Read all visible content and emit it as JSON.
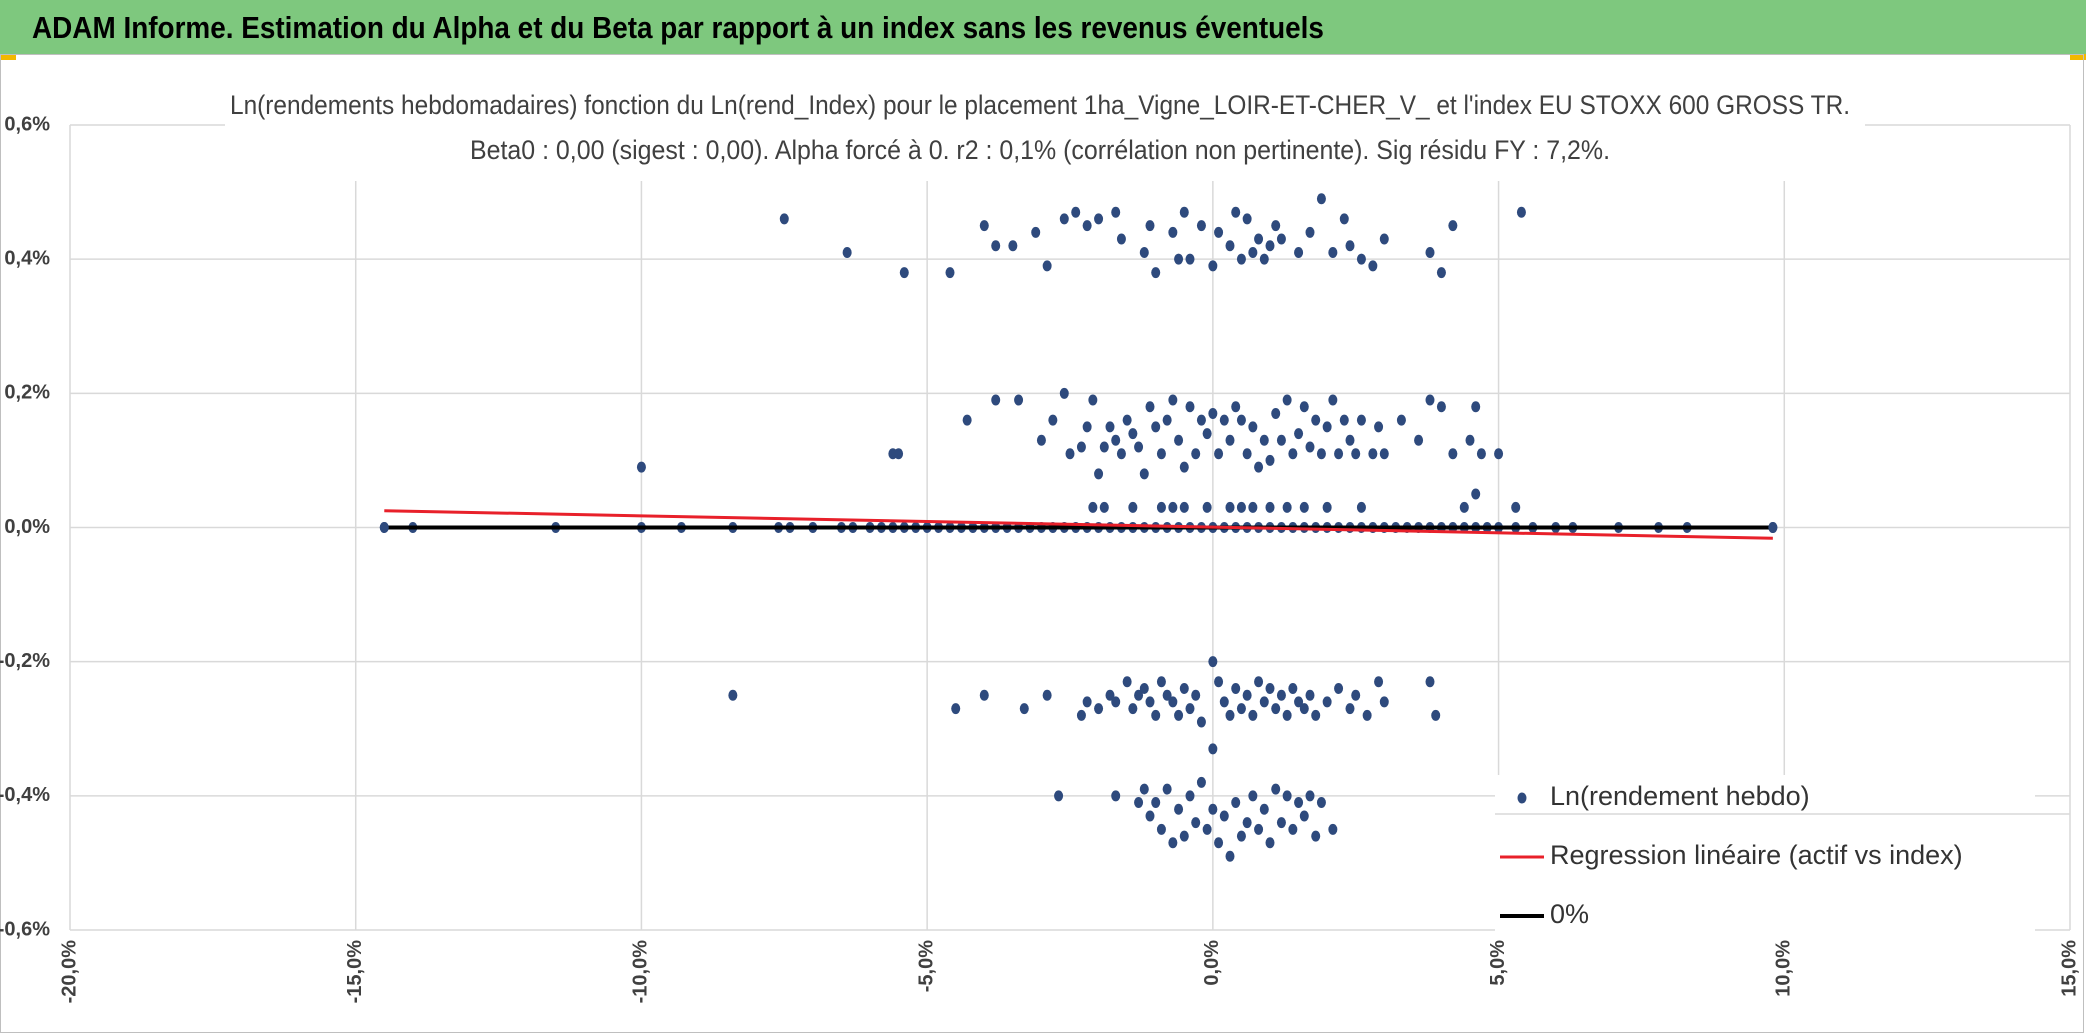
{
  "header": {
    "title": "ADAM Informe. Estimation du Alpha et du Beta par rapport à un index sans les revenus éventuels",
    "background": "#7ec87e",
    "corner_color": "#f2b800"
  },
  "chart_data": {
    "type": "scatter",
    "title": "Ln(rendements hebdomadaires) fonction du Ln(rend_Index) pour le placement 1ha_Vigne_LOIR-ET-CHER_V_ et l'index EU STOXX 600 GROSS TR.",
    "subtitle": "Beta0 : 0,00 (sigest : 0,00). Alpha forcé à 0. r2 : 0,1% (corrélation non pertinente). Sig résidu FY : 7,2%.",
    "xlabel": "",
    "ylabel": "",
    "xlim": [
      -20,
      15
    ],
    "ylim": [
      -0.6,
      0.6
    ],
    "x_ticks": [
      "-20,0%",
      "-15,0%",
      "-10,0%",
      "-5,0%",
      "0,0%",
      "5,0%",
      "10,0%",
      "15,0%"
    ],
    "y_ticks": [
      "0,6%",
      "0,4%",
      "0,2%",
      "0,0%",
      "-0,2%",
      "-0,4%",
      "-0,6%"
    ],
    "grid": true,
    "legend_position": "bottom-right",
    "series": [
      {
        "name": "Ln(rendement hebdo)",
        "kind": "scatter",
        "color": "#2e4a7d",
        "points": [
          [
            -7.5,
            0.46
          ],
          [
            -6.4,
            0.41
          ],
          [
            -5.4,
            0.38
          ],
          [
            -4.6,
            0.38
          ],
          [
            -4.0,
            0.45
          ],
          [
            -3.8,
            0.42
          ],
          [
            -3.5,
            0.42
          ],
          [
            -3.1,
            0.44
          ],
          [
            -2.9,
            0.39
          ],
          [
            -2.6,
            0.46
          ],
          [
            -2.4,
            0.47
          ],
          [
            -2.2,
            0.45
          ],
          [
            -2.0,
            0.46
          ],
          [
            -1.7,
            0.47
          ],
          [
            -1.6,
            0.43
          ],
          [
            -1.2,
            0.41
          ],
          [
            -1.1,
            0.45
          ],
          [
            -1.0,
            0.38
          ],
          [
            -0.7,
            0.44
          ],
          [
            -0.6,
            0.4
          ],
          [
            -0.5,
            0.47
          ],
          [
            -0.4,
            0.4
          ],
          [
            -0.2,
            0.45
          ],
          [
            0.0,
            0.39
          ],
          [
            0.1,
            0.44
          ],
          [
            0.3,
            0.42
          ],
          [
            0.4,
            0.47
          ],
          [
            0.5,
            0.4
          ],
          [
            0.6,
            0.46
          ],
          [
            0.7,
            0.41
          ],
          [
            0.8,
            0.43
          ],
          [
            0.9,
            0.4
          ],
          [
            1.0,
            0.42
          ],
          [
            1.1,
            0.45
          ],
          [
            1.2,
            0.43
          ],
          [
            1.5,
            0.41
          ],
          [
            1.7,
            0.44
          ],
          [
            1.9,
            0.49
          ],
          [
            2.1,
            0.41
          ],
          [
            2.3,
            0.46
          ],
          [
            2.4,
            0.42
          ],
          [
            2.6,
            0.4
          ],
          [
            2.8,
            0.39
          ],
          [
            3.0,
            0.43
          ],
          [
            3.8,
            0.41
          ],
          [
            4.0,
            0.38
          ],
          [
            4.2,
            0.45
          ],
          [
            5.4,
            0.47
          ],
          [
            -10.0,
            0.09
          ],
          [
            -5.6,
            0.11
          ],
          [
            -5.5,
            0.11
          ],
          [
            -4.3,
            0.16
          ],
          [
            -3.8,
            0.19
          ],
          [
            -3.4,
            0.19
          ],
          [
            -3.0,
            0.13
          ],
          [
            -2.8,
            0.16
          ],
          [
            -2.6,
            0.2
          ],
          [
            -2.5,
            0.11
          ],
          [
            -2.3,
            0.12
          ],
          [
            -2.2,
            0.15
          ],
          [
            -2.1,
            0.19
          ],
          [
            -2.0,
            0.08
          ],
          [
            -1.9,
            0.12
          ],
          [
            -1.8,
            0.15
          ],
          [
            -1.7,
            0.13
          ],
          [
            -1.6,
            0.11
          ],
          [
            -1.5,
            0.16
          ],
          [
            -1.4,
            0.14
          ],
          [
            -1.3,
            0.12
          ],
          [
            -1.2,
            0.08
          ],
          [
            -1.1,
            0.18
          ],
          [
            -1.0,
            0.15
          ],
          [
            -0.9,
            0.11
          ],
          [
            -0.8,
            0.16
          ],
          [
            -0.7,
            0.19
          ],
          [
            -0.6,
            0.13
          ],
          [
            -0.5,
            0.09
          ],
          [
            -0.4,
            0.18
          ],
          [
            -0.3,
            0.11
          ],
          [
            -0.2,
            0.16
          ],
          [
            -0.1,
            0.14
          ],
          [
            0.0,
            0.17
          ],
          [
            0.1,
            0.11
          ],
          [
            0.2,
            0.16
          ],
          [
            0.3,
            0.13
          ],
          [
            0.4,
            0.18
          ],
          [
            0.5,
            0.16
          ],
          [
            0.6,
            0.11
          ],
          [
            0.7,
            0.15
          ],
          [
            0.8,
            0.09
          ],
          [
            0.9,
            0.13
          ],
          [
            1.0,
            0.1
          ],
          [
            1.1,
            0.17
          ],
          [
            1.2,
            0.13
          ],
          [
            1.3,
            0.19
          ],
          [
            1.4,
            0.11
          ],
          [
            1.5,
            0.14
          ],
          [
            1.6,
            0.18
          ],
          [
            1.7,
            0.12
          ],
          [
            1.8,
            0.16
          ],
          [
            1.9,
            0.11
          ],
          [
            2.0,
            0.15
          ],
          [
            2.1,
            0.19
          ],
          [
            2.2,
            0.11
          ],
          [
            2.3,
            0.16
          ],
          [
            2.4,
            0.13
          ],
          [
            2.5,
            0.11
          ],
          [
            2.6,
            0.16
          ],
          [
            2.8,
            0.11
          ],
          [
            2.9,
            0.15
          ],
          [
            3.0,
            0.11
          ],
          [
            3.3,
            0.16
          ],
          [
            3.6,
            0.13
          ],
          [
            3.8,
            0.19
          ],
          [
            4.0,
            0.18
          ],
          [
            4.2,
            0.11
          ],
          [
            4.5,
            0.13
          ],
          [
            4.6,
            0.18
          ],
          [
            4.7,
            0.11
          ],
          [
            5.0,
            0.11
          ],
          [
            4.6,
            0.05
          ],
          [
            -2.1,
            0.03
          ],
          [
            -1.9,
            0.03
          ],
          [
            -1.4,
            0.03
          ],
          [
            -0.9,
            0.03
          ],
          [
            -0.7,
            0.03
          ],
          [
            -0.5,
            0.03
          ],
          [
            -0.1,
            0.03
          ],
          [
            0.3,
            0.03
          ],
          [
            0.5,
            0.03
          ],
          [
            0.7,
            0.03
          ],
          [
            1.0,
            0.03
          ],
          [
            1.3,
            0.03
          ],
          [
            1.6,
            0.03
          ],
          [
            2.0,
            0.03
          ],
          [
            2.6,
            0.03
          ],
          [
            4.4,
            0.03
          ],
          [
            5.3,
            0.03
          ],
          [
            -14.5,
            0
          ],
          [
            -14.0,
            0
          ],
          [
            -11.5,
            0
          ],
          [
            -10.0,
            0
          ],
          [
            -9.3,
            0
          ],
          [
            -8.4,
            0
          ],
          [
            -7.6,
            0
          ],
          [
            -7.4,
            0
          ],
          [
            -7.0,
            0
          ],
          [
            -6.5,
            0
          ],
          [
            -6.3,
            0
          ],
          [
            -6.0,
            0
          ],
          [
            -5.8,
            0
          ],
          [
            -5.6,
            0
          ],
          [
            -5.4,
            0
          ],
          [
            -5.2,
            0
          ],
          [
            -5.0,
            0
          ],
          [
            -4.8,
            0
          ],
          [
            -4.6,
            0
          ],
          [
            -4.4,
            0
          ],
          [
            -4.2,
            0
          ],
          [
            -4.0,
            0
          ],
          [
            -3.8,
            0
          ],
          [
            -3.6,
            0
          ],
          [
            -3.4,
            0
          ],
          [
            -3.2,
            0
          ],
          [
            -3.0,
            0
          ],
          [
            -2.8,
            0
          ],
          [
            -2.6,
            0
          ],
          [
            -2.4,
            0
          ],
          [
            -2.2,
            0
          ],
          [
            -2.0,
            0
          ],
          [
            -1.8,
            0
          ],
          [
            -1.6,
            0
          ],
          [
            -1.4,
            0
          ],
          [
            -1.2,
            0
          ],
          [
            -1.0,
            0
          ],
          [
            -0.8,
            0
          ],
          [
            -0.6,
            0
          ],
          [
            -0.4,
            0
          ],
          [
            -0.2,
            0
          ],
          [
            0.0,
            0
          ],
          [
            0.2,
            0
          ],
          [
            0.4,
            0
          ],
          [
            0.6,
            0
          ],
          [
            0.8,
            0
          ],
          [
            1.0,
            0
          ],
          [
            1.2,
            0
          ],
          [
            1.4,
            0
          ],
          [
            1.6,
            0
          ],
          [
            1.8,
            0
          ],
          [
            2.0,
            0
          ],
          [
            2.2,
            0
          ],
          [
            2.4,
            0
          ],
          [
            2.6,
            0
          ],
          [
            2.8,
            0
          ],
          [
            3.0,
            0
          ],
          [
            3.2,
            0
          ],
          [
            3.4,
            0
          ],
          [
            3.6,
            0
          ],
          [
            3.8,
            0
          ],
          [
            4.0,
            0
          ],
          [
            4.2,
            0
          ],
          [
            4.4,
            0
          ],
          [
            4.6,
            0
          ],
          [
            4.8,
            0
          ],
          [
            5.0,
            0
          ],
          [
            5.3,
            0
          ],
          [
            5.6,
            0
          ],
          [
            6.0,
            0
          ],
          [
            6.3,
            0
          ],
          [
            7.1,
            0
          ],
          [
            7.8,
            0
          ],
          [
            8.3,
            0
          ],
          [
            9.8,
            0
          ],
          [
            -8.4,
            -0.25
          ],
          [
            -4.5,
            -0.27
          ],
          [
            -4.0,
            -0.25
          ],
          [
            -3.3,
            -0.27
          ],
          [
            -2.9,
            -0.25
          ],
          [
            -2.3,
            -0.28
          ],
          [
            -2.2,
            -0.26
          ],
          [
            -2.0,
            -0.27
          ],
          [
            -1.8,
            -0.25
          ],
          [
            -1.7,
            -0.26
          ],
          [
            -1.5,
            -0.23
          ],
          [
            -1.4,
            -0.27
          ],
          [
            -1.3,
            -0.25
          ],
          [
            -1.2,
            -0.24
          ],
          [
            -1.1,
            -0.26
          ],
          [
            -1.0,
            -0.28
          ],
          [
            -0.9,
            -0.23
          ],
          [
            -0.8,
            -0.25
          ],
          [
            -0.7,
            -0.26
          ],
          [
            -0.6,
            -0.28
          ],
          [
            -0.5,
            -0.24
          ],
          [
            -0.4,
            -0.27
          ],
          [
            -0.3,
            -0.25
          ],
          [
            -0.2,
            -0.29
          ],
          [
            0.0,
            -0.2
          ],
          [
            0.1,
            -0.23
          ],
          [
            0.0,
            -0.33
          ],
          [
            0.2,
            -0.26
          ],
          [
            0.3,
            -0.28
          ],
          [
            0.4,
            -0.24
          ],
          [
            0.5,
            -0.27
          ],
          [
            0.6,
            -0.25
          ],
          [
            0.7,
            -0.28
          ],
          [
            0.8,
            -0.23
          ],
          [
            0.9,
            -0.26
          ],
          [
            1.0,
            -0.24
          ],
          [
            1.1,
            -0.27
          ],
          [
            1.2,
            -0.25
          ],
          [
            1.3,
            -0.28
          ],
          [
            1.4,
            -0.24
          ],
          [
            1.5,
            -0.26
          ],
          [
            1.6,
            -0.27
          ],
          [
            1.7,
            -0.25
          ],
          [
            1.8,
            -0.28
          ],
          [
            2.0,
            -0.26
          ],
          [
            2.2,
            -0.24
          ],
          [
            2.4,
            -0.27
          ],
          [
            2.5,
            -0.25
          ],
          [
            2.7,
            -0.28
          ],
          [
            2.9,
            -0.23
          ],
          [
            3.0,
            -0.26
          ],
          [
            3.8,
            -0.23
          ],
          [
            3.9,
            -0.28
          ],
          [
            -2.7,
            -0.4
          ],
          [
            -1.7,
            -0.4
          ],
          [
            -1.3,
            -0.41
          ],
          [
            -1.2,
            -0.39
          ],
          [
            -1.1,
            -0.43
          ],
          [
            -1.0,
            -0.41
          ],
          [
            -0.9,
            -0.45
          ],
          [
            -0.8,
            -0.39
          ],
          [
            -0.7,
            -0.47
          ],
          [
            -0.6,
            -0.42
          ],
          [
            -0.5,
            -0.46
          ],
          [
            -0.4,
            -0.4
          ],
          [
            -0.3,
            -0.44
          ],
          [
            -0.2,
            -0.38
          ],
          [
            -0.1,
            -0.45
          ],
          [
            0.0,
            -0.42
          ],
          [
            0.1,
            -0.47
          ],
          [
            0.2,
            -0.43
          ],
          [
            0.3,
            -0.49
          ],
          [
            0.4,
            -0.41
          ],
          [
            0.5,
            -0.46
          ],
          [
            0.6,
            -0.44
          ],
          [
            0.7,
            -0.4
          ],
          [
            0.8,
            -0.45
          ],
          [
            0.9,
            -0.42
          ],
          [
            1.0,
            -0.47
          ],
          [
            1.1,
            -0.39
          ],
          [
            1.2,
            -0.44
          ],
          [
            1.3,
            -0.4
          ],
          [
            1.4,
            -0.45
          ],
          [
            1.5,
            -0.41
          ],
          [
            1.6,
            -0.43
          ],
          [
            1.7,
            -0.4
          ],
          [
            1.8,
            -0.46
          ],
          [
            1.9,
            -0.41
          ],
          [
            2.1,
            -0.45
          ]
        ]
      },
      {
        "name": "Regression linéaire (actif vs index)",
        "kind": "line",
        "color": "#e8202a",
        "x": [
          -14.5,
          9.8
        ],
        "y": [
          0.025,
          -0.016
        ]
      },
      {
        "name": "0%",
        "kind": "line",
        "color": "#000000",
        "x": [
          -14.5,
          9.8
        ],
        "y": [
          0,
          0
        ]
      }
    ]
  }
}
